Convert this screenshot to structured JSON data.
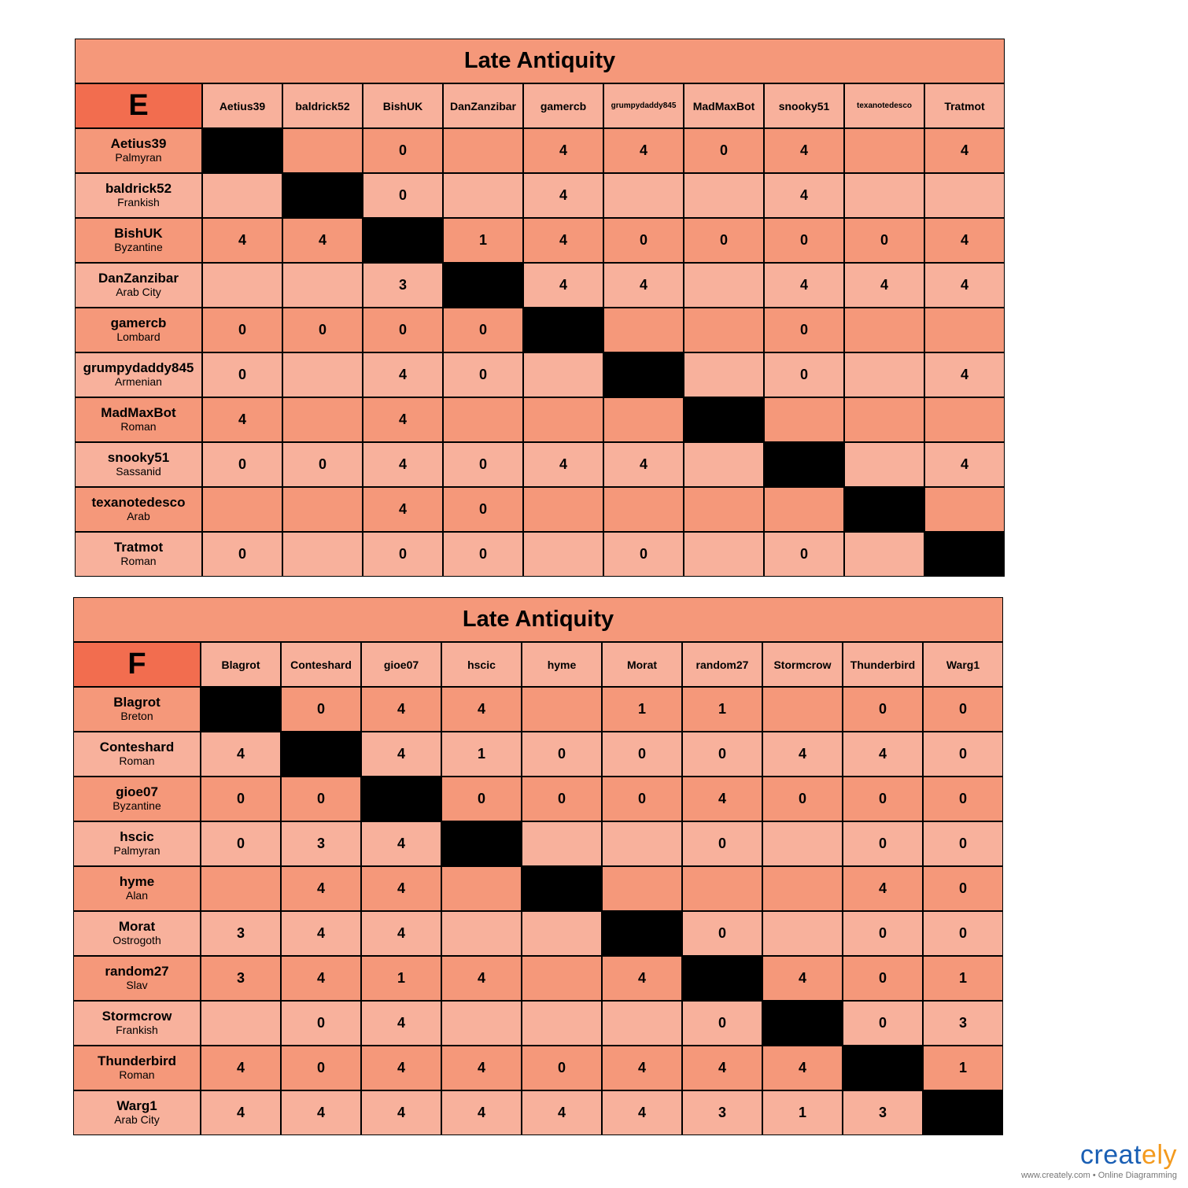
{
  "tables": [
    {
      "title": "Late Antiquity",
      "label": "E",
      "columns": [
        "Aetius39",
        "baldrick52",
        "BishUK",
        "DanZanzibar",
        "gamercb",
        "grumpydaddy845",
        "MadMaxBot",
        "snooky51",
        "texanotedesco",
        "Tratmot"
      ],
      "rows": [
        {
          "name": "Aetius39",
          "civ": "Palmyran",
          "values": [
            null,
            "",
            "0",
            "",
            "4",
            "4",
            "0",
            "4",
            "",
            "4"
          ]
        },
        {
          "name": "baldrick52",
          "civ": "Frankish",
          "values": [
            "",
            null,
            "0",
            "",
            "4",
            "",
            "",
            "4",
            "",
            ""
          ]
        },
        {
          "name": "BishUK",
          "civ": "Byzantine",
          "values": [
            "4",
            "4",
            null,
            "1",
            "4",
            "0",
            "0",
            "0",
            "0",
            "4"
          ]
        },
        {
          "name": "DanZanzibar",
          "civ": "Arab City",
          "values": [
            "",
            "",
            "3",
            null,
            "4",
            "4",
            "",
            "4",
            "4",
            "4"
          ]
        },
        {
          "name": "gamercb",
          "civ": "Lombard",
          "values": [
            "0",
            "0",
            "0",
            "0",
            null,
            "",
            "",
            "0",
            "",
            ""
          ]
        },
        {
          "name": "grumpydaddy845",
          "civ": "Armenian",
          "values": [
            "0",
            "",
            "4",
            "0",
            "",
            null,
            "",
            "0",
            "",
            "4"
          ]
        },
        {
          "name": "MadMaxBot",
          "civ": "Roman",
          "values": [
            "4",
            "",
            "4",
            "",
            "",
            "",
            null,
            "",
            "",
            ""
          ]
        },
        {
          "name": "snooky51",
          "civ": "Sassanid",
          "values": [
            "0",
            "0",
            "4",
            "0",
            "4",
            "4",
            "",
            null,
            "",
            "4"
          ]
        },
        {
          "name": "texanotedesco",
          "civ": "Arab",
          "values": [
            "",
            "",
            "4",
            "0",
            "",
            "",
            "",
            "",
            null,
            ""
          ]
        },
        {
          "name": "Tratmot",
          "civ": "Roman",
          "values": [
            "0",
            "",
            "0",
            "0",
            "",
            "0",
            "",
            "0",
            "",
            null
          ]
        }
      ]
    },
    {
      "title": "Late Antiquity",
      "label": "F",
      "columns": [
        "Blagrot",
        "Conteshard",
        "gioe07",
        "hscic",
        "hyme",
        "Morat",
        "random27",
        "Stormcrow",
        "Thunderbird",
        "Warg1"
      ],
      "rows": [
        {
          "name": "Blagrot",
          "civ": "Breton",
          "values": [
            null,
            "0",
            "4",
            "4",
            "",
            "1",
            "1",
            "",
            "0",
            "0"
          ]
        },
        {
          "name": "Conteshard",
          "civ": "Roman",
          "values": [
            "4",
            null,
            "4",
            "1",
            "0",
            "0",
            "0",
            "4",
            "4",
            "0"
          ]
        },
        {
          "name": "gioe07",
          "civ": "Byzantine",
          "values": [
            "0",
            "0",
            null,
            "0",
            "0",
            "0",
            "4",
            "0",
            "0",
            "0"
          ]
        },
        {
          "name": "hscic",
          "civ": "Palmyran",
          "values": [
            "0",
            "3",
            "4",
            null,
            "",
            "",
            "0",
            "",
            "0",
            "0"
          ]
        },
        {
          "name": "hyme",
          "civ": "Alan",
          "values": [
            "",
            "4",
            "4",
            "",
            null,
            "",
            "",
            "",
            "4",
            "0"
          ]
        },
        {
          "name": "Morat",
          "civ": "Ostrogoth",
          "values": [
            "3",
            "4",
            "4",
            "",
            "",
            null,
            "0",
            "",
            "0",
            "0"
          ]
        },
        {
          "name": "random27",
          "civ": "Slav",
          "values": [
            "3",
            "4",
            "1",
            "4",
            "",
            "4",
            null,
            "4",
            "0",
            "1"
          ]
        },
        {
          "name": "Stormcrow",
          "civ": "Frankish",
          "values": [
            "",
            "0",
            "4",
            "",
            "",
            "",
            "0",
            null,
            "0",
            "3"
          ]
        },
        {
          "name": "Thunderbird",
          "civ": "Roman",
          "values": [
            "4",
            "0",
            "4",
            "4",
            "0",
            "4",
            "4",
            "4",
            null,
            "1"
          ]
        },
        {
          "name": "Warg1",
          "civ": "Arab City",
          "values": [
            "4",
            "4",
            "4",
            "4",
            "4",
            "4",
            "3",
            "1",
            "3",
            null
          ]
        }
      ]
    }
  ],
  "colors": {
    "title": "#F5987A",
    "corner": "#F26D4F",
    "row_dark": "#F5987A",
    "row_light": "#F8B19C",
    "diagonal": "#000000"
  },
  "branding": {
    "logo_main": "creat",
    "logo_accent": "ely",
    "tagline": "www.creately.com • Online Diagramming"
  }
}
